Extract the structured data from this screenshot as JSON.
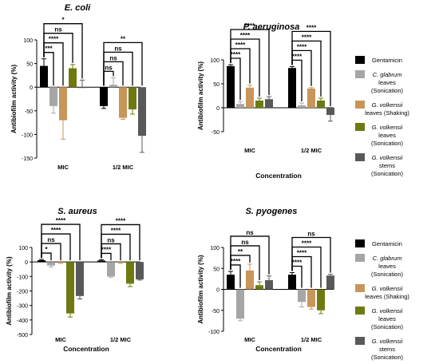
{
  "colors": {
    "gentamicin": "#000000",
    "c_glabrum": "#a6a6a6",
    "gv_leaves_shaking": "#c8955a",
    "gv_leaves_sonication": "#6e7a10",
    "gv_stems_sonication": "#595959"
  },
  "legends": [
    {
      "entries": [
        {
          "key": "gentamicin",
          "lines": [
            {
              "t": "Gentamicin",
              "i": false
            }
          ]
        },
        {
          "key": "c_glabrum",
          "lines": [
            {
              "t": "C. glabrum",
              "i": true
            },
            {
              "t": "leaves",
              "i": false
            },
            {
              "t": "(Sonication)",
              "i": false
            }
          ]
        },
        {
          "key": "gv_leaves_shaking",
          "lines": [
            {
              "t": "G. volkensii",
              "i": true
            },
            {
              "t": "leaves (Shaking)",
              "i": false
            }
          ]
        },
        {
          "key": "gv_leaves_sonication",
          "lines": [
            {
              "t": "G. volkensii",
              "i": true
            },
            {
              "t": "leaves",
              "i": false
            },
            {
              "t": "(Sonication)",
              "i": false
            }
          ]
        },
        {
          "key": "gv_stems_sonication",
          "lines": [
            {
              "t": "G. volkensii",
              "i": true
            },
            {
              "t": "stems",
              "i": false
            },
            {
              "t": "(Sonication)",
              "i": false
            }
          ]
        }
      ]
    },
    {
      "entries": [
        {
          "key": "gentamicin",
          "lines": [
            {
              "t": "Gentamicin",
              "i": false
            }
          ]
        },
        {
          "key": "c_glabrum",
          "lines": [
            {
              "t": "C. glabrum",
              "i": true
            },
            {
              "t": "leaves",
              "i": false
            },
            {
              "t": "(Sonication)",
              "i": false
            }
          ]
        },
        {
          "key": "gv_leaves_shaking",
          "lines": [
            {
              "t": "G. volkensii",
              "i": true
            },
            {
              "t": "leaves (Shaking)",
              "i": false
            }
          ]
        },
        {
          "key": "gv_leaves_sonication",
          "lines": [
            {
              "t": "G. volkensii",
              "i": true
            },
            {
              "t": "leaves",
              "i": false
            },
            {
              "t": "(Sonication)",
              "i": false
            }
          ]
        },
        {
          "key": "gv_stems_sonication",
          "lines": [
            {
              "t": "G. volkensii",
              "i": true
            },
            {
              "t": "stems",
              "i": false
            },
            {
              "t": "(Sonication)",
              "i": false
            }
          ]
        }
      ]
    }
  ],
  "chart_data": [
    {
      "type": "bar",
      "title": "E. coli",
      "ylabel": "Antibiofilm activity (%)",
      "xlabel": "",
      "categories": [
        "MIC",
        "1/2 MIC"
      ],
      "ylim": [
        -150,
        100
      ],
      "yticks": [
        -150,
        -100,
        -50,
        0,
        50,
        100
      ],
      "series": [
        {
          "key": "gentamicin",
          "values": [
            45,
            -40
          ],
          "errors": [
            15,
            5
          ]
        },
        {
          "key": "c_glabrum",
          "values": [
            -40,
            5
          ],
          "errors": [
            15,
            15
          ]
        },
        {
          "key": "gv_leaves_shaking",
          "values": [
            -70,
            -65
          ],
          "errors": [
            40,
            3
          ]
        },
        {
          "key": "gv_leaves_sonication",
          "values": [
            40,
            -47
          ],
          "errors": [
            8,
            10
          ]
        },
        {
          "key": "gv_stems_sonication",
          "values": [
            0,
            -103
          ],
          "errors": [
            15,
            35
          ]
        }
      ],
      "significance": [
        {
          "label": "***",
          "cat": 0,
          "to": 1
        },
        {
          "label": "****",
          "cat": 0,
          "to": 2
        },
        {
          "label": "ns",
          "cat": 0,
          "to": 3
        },
        {
          "label": "*",
          "cat": 0,
          "to": 4
        },
        {
          "label": "ns",
          "cat": 1,
          "to": 1
        },
        {
          "label": "ns",
          "cat": 1,
          "to": 2
        },
        {
          "label": "ns",
          "cat": 1,
          "to": 3
        },
        {
          "label": "**",
          "cat": 1,
          "to": 4
        }
      ]
    },
    {
      "type": "bar",
      "title": "P. aeruginosa",
      "ylabel": "Antibiofilm activity (%)",
      "xlabel": "Concentration",
      "categories": [
        "MIC",
        "1/2 MIC"
      ],
      "ylim": [
        -50,
        100
      ],
      "yticks": [
        -50,
        0,
        50,
        100
      ],
      "series": [
        {
          "key": "gentamicin",
          "values": [
            87,
            83
          ],
          "errors": [
            3,
            3
          ]
        },
        {
          "key": "c_glabrum",
          "values": [
            8,
            5
          ],
          "errors": [
            5,
            5
          ]
        },
        {
          "key": "gv_leaves_shaking",
          "values": [
            42,
            40
          ],
          "errors": [
            5,
            2
          ]
        },
        {
          "key": "gv_leaves_sonication",
          "values": [
            15,
            15
          ],
          "errors": [
            5,
            5
          ]
        },
        {
          "key": "gv_stems_sonication",
          "values": [
            18,
            -15
          ],
          "errors": [
            5,
            13
          ]
        }
      ],
      "significance": [
        {
          "label": "****",
          "cat": 0,
          "to": 1
        },
        {
          "label": "****",
          "cat": 0,
          "to": 2
        },
        {
          "label": "****",
          "cat": 0,
          "to": 3
        },
        {
          "label": "****",
          "cat": 0,
          "to": 4
        },
        {
          "label": "****",
          "cat": 1,
          "to": 1
        },
        {
          "label": "****",
          "cat": 1,
          "to": 2
        },
        {
          "label": "****",
          "cat": 1,
          "to": 3
        },
        {
          "label": "****",
          "cat": 1,
          "to": 4
        }
      ]
    },
    {
      "type": "bar",
      "title": "S. aureus",
      "ylabel": "Antibiofilm activity (%)",
      "xlabel": "Concentration",
      "categories": [
        "MIC",
        "1/2 MIC"
      ],
      "ylim": [
        -500,
        100
      ],
      "yticks": [
        -500,
        -400,
        -300,
        -200,
        -100,
        0,
        100
      ],
      "series": [
        {
          "key": "gentamicin",
          "values": [
            12,
            10
          ],
          "errors": [
            5,
            5
          ]
        },
        {
          "key": "c_glabrum",
          "values": [
            -25,
            -100
          ],
          "errors": [
            10,
            5
          ]
        },
        {
          "key": "gv_leaves_shaking",
          "values": [
            -5,
            -5
          ],
          "errors": [
            5,
            5
          ]
        },
        {
          "key": "gv_leaves_sonication",
          "values": [
            -355,
            -150
          ],
          "errors": [
            25,
            20
          ]
        },
        {
          "key": "gv_stems_sonication",
          "values": [
            -235,
            -120
          ],
          "errors": [
            20,
            5
          ]
        }
      ],
      "significance": [
        {
          "label": "*",
          "cat": 0,
          "to": 1
        },
        {
          "label": "ns",
          "cat": 0,
          "to": 2
        },
        {
          "label": "****",
          "cat": 0,
          "to": 3
        },
        {
          "label": "****",
          "cat": 0,
          "to": 4
        },
        {
          "label": "****",
          "cat": 1,
          "to": 1
        },
        {
          "label": "ns",
          "cat": 1,
          "to": 2
        },
        {
          "label": "****",
          "cat": 1,
          "to": 3
        },
        {
          "label": "****",
          "cat": 1,
          "to": 4
        }
      ]
    },
    {
      "type": "bar",
      "title": "S. pyogenes",
      "ylabel": "Antibiofilm activity (%)",
      "xlabel": "Concentration",
      "categories": [
        "MIC",
        "1/2 MIC"
      ],
      "ylim": [
        -100,
        100
      ],
      "yticks": [
        -100,
        -50,
        0,
        50,
        100
      ],
      "series": [
        {
          "key": "gentamicin",
          "values": [
            35,
            35
          ],
          "errors": [
            8,
            5
          ]
        },
        {
          "key": "c_glabrum",
          "values": [
            -70,
            -30
          ],
          "errors": [
            5,
            12
          ]
        },
        {
          "key": "gv_leaves_shaking",
          "values": [
            45,
            -42
          ],
          "errors": [
            15,
            5
          ]
        },
        {
          "key": "gv_leaves_sonication",
          "values": [
            10,
            -50
          ],
          "errors": [
            8,
            8
          ]
        },
        {
          "key": "gv_stems_sonication",
          "values": [
            22,
            33
          ],
          "errors": [
            10,
            3
          ]
        }
      ],
      "significance": [
        {
          "label": "****",
          "cat": 0,
          "to": 1
        },
        {
          "label": "**",
          "cat": 0,
          "to": 2
        },
        {
          "label": "ns",
          "cat": 0,
          "to": 3
        },
        {
          "label": "ns",
          "cat": 0,
          "to": 4
        },
        {
          "label": "****",
          "cat": 1,
          "to": 1
        },
        {
          "label": "****",
          "cat": 1,
          "to": 2
        },
        {
          "label": "****",
          "cat": 1,
          "to": 3
        },
        {
          "label": "ns",
          "cat": 1,
          "to": 4
        }
      ]
    }
  ]
}
